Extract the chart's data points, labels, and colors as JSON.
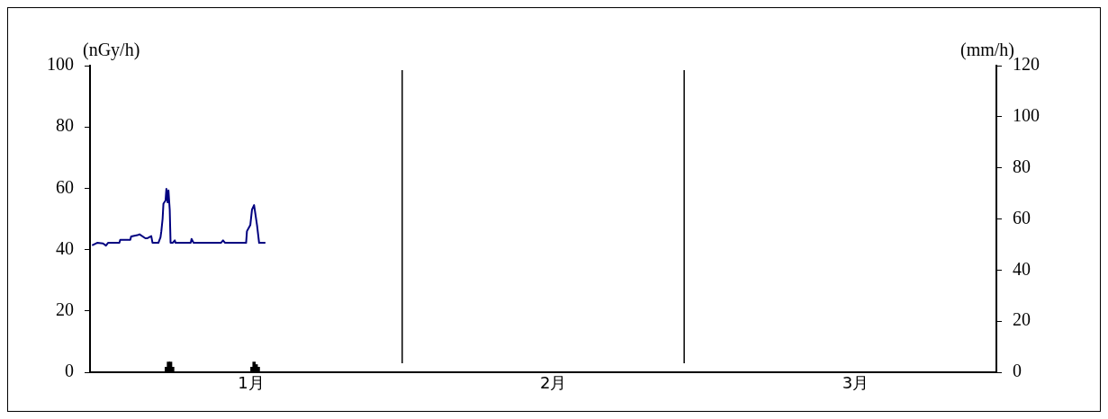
{
  "chart_data": {
    "type": "line",
    "ylabel": "(nGy/h)",
    "y2label": "(mm/h)",
    "xlim": [
      "--01-01",
      "--04-01"
    ],
    "xticks": [
      {
        "value": "--01-17",
        "label": "1月"
      },
      {
        "value": "--02-16",
        "label": "2月"
      },
      {
        "value": "--03-18",
        "label": "3月"
      }
    ],
    "ylim": [
      0,
      100
    ],
    "yticks": [
      0,
      20,
      40,
      60,
      80,
      100
    ],
    "y2lim": [
      0,
      120
    ],
    "y2ticks": [
      0,
      20,
      40,
      60,
      80,
      100,
      120
    ],
    "grid": false,
    "legend": false,
    "marker": "none",
    "line_style": "solid",
    "ref_lines": [
      {
        "axis": "x",
        "value": "--02-01",
        "color": "#000000"
      },
      {
        "axis": "x",
        "value": "--03-01",
        "color": "#000000"
      }
    ],
    "series": [
      {
        "color": "#000080",
        "x": [
          "--01-01T05:00",
          "--01-01T17:00",
          "--01-02T07:00",
          "--01-02T14:00",
          "--01-02T19:00",
          "--01-03T22:00",
          "--01-04T00:00",
          "--01-05T00:00",
          "--01-05T02:00",
          "--01-05T17:00",
          "--01-05T22:00",
          "--01-06T12:00",
          "--01-06T17:00",
          "--01-07T02:00",
          "--01-07T05:00",
          "--01-07T19:00",
          "--01-08T00:00",
          "--01-08T02:00",
          "--01-08T05:00",
          "--01-08T07:00",
          "--01-08T12:00",
          "--01-08T14:00",
          "--01-08T17:00",
          "--01-08T19:00",
          "--01-08T22:00",
          "--01-09T00:00",
          "--01-09T05:00",
          "--01-09T10:00",
          "--01-09T12:00",
          "--01-10T00:00",
          "--01-11T00:00",
          "--01-11T02:00",
          "--01-11T07:00",
          "--01-12T00:00",
          "--01-13T00:00",
          "--01-14T00:00",
          "--01-14T05:00",
          "--01-14T10:00",
          "--01-15T00:00",
          "--01-16T00:00",
          "--01-16T12:00",
          "--01-16T14:00",
          "--01-16T22:00",
          "--01-17T02:00",
          "--01-17T07:00",
          "--01-17T14:00",
          "--01-17T19:00",
          "--01-18T05:00",
          "--01-18T10:00"
        ],
        "values": [
          41.4,
          42.2,
          42,
          41.3,
          42.2,
          42.2,
          43.2,
          43.2,
          44.3,
          44.7,
          45,
          43.7,
          43.7,
          44.4,
          42.2,
          42.2,
          44,
          46,
          50,
          55,
          56,
          59.8,
          55.4,
          59.3,
          53,
          42.2,
          42.2,
          43,
          42.2,
          42.2,
          42.2,
          43.5,
          42.2,
          42.2,
          42.2,
          42.2,
          43,
          42.2,
          42.2,
          42.2,
          42.2,
          46,
          48,
          53,
          54.5,
          48,
          42.2,
          42.2,
          42.2
        ]
      },
      {
        "type": "bar",
        "axis": "y2",
        "color": "#000000",
        "x": [
          "--01-08T14:00",
          "--01-08T19:00",
          "--01-09T00:00",
          "--01-09T05:00",
          "--01-17T02:00",
          "--01-17T07:00",
          "--01-17T12:00",
          "--01-17T17:00"
        ],
        "values": [
          2,
          4,
          4,
          2,
          2,
          4,
          3,
          2
        ]
      }
    ]
  }
}
